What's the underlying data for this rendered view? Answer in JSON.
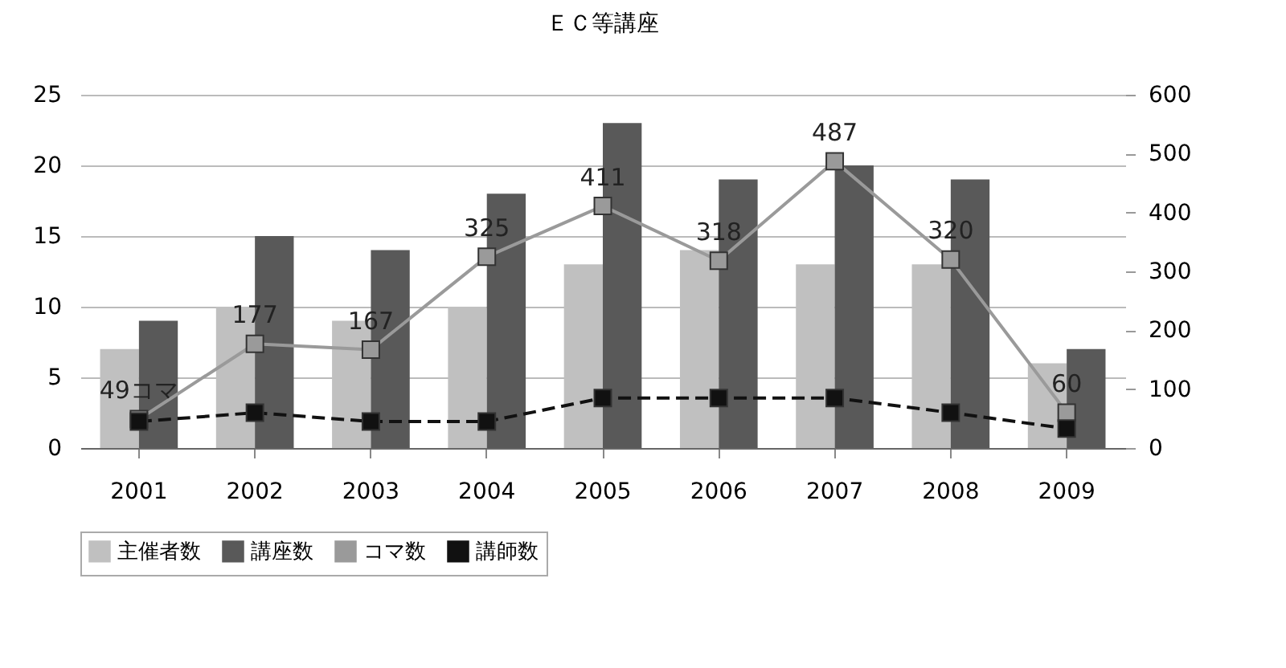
{
  "chart_data": {
    "type": "bar",
    "title": "ＥＣ等講座",
    "categories": [
      "2001",
      "2002",
      "2003",
      "2004",
      "2005",
      "2006",
      "2007",
      "2008",
      "2009"
    ],
    "series": [
      {
        "name": "主催者数",
        "color": "#c0c0c0",
        "values": [
          7,
          10,
          9,
          10,
          13,
          14,
          13,
          13,
          6
        ]
      },
      {
        "name": "講座数",
        "color": "#595959",
        "values": [
          9,
          15,
          14,
          18,
          23,
          19,
          20,
          19,
          7
        ]
      },
      {
        "name": "コマ数",
        "type": "line",
        "axis": "y2",
        "color": "#9a9a9a",
        "line_style": "solid",
        "marker": "square",
        "values": [
          49,
          177,
          167,
          325,
          411,
          318,
          487,
          320,
          60
        ],
        "value_labels": [
          "49コマ",
          "177",
          "167",
          "325",
          "411",
          "318",
          "487",
          "320",
          "60"
        ]
      },
      {
        "name": "講師数",
        "type": "line",
        "axis": "y2",
        "color": "#111111",
        "line_style": "dashed",
        "marker": "square",
        "values": [
          45,
          60,
          45,
          45,
          85,
          85,
          85,
          60,
          33
        ]
      }
    ],
    "ylim": [
      0,
      25
    ],
    "yticks": [
      0,
      5,
      10,
      15,
      20,
      25
    ],
    "y2lim": [
      0,
      600
    ],
    "y2ticks": [
      0,
      100,
      200,
      300,
      400,
      500,
      600
    ],
    "grid": "y",
    "legend": "bottom"
  }
}
